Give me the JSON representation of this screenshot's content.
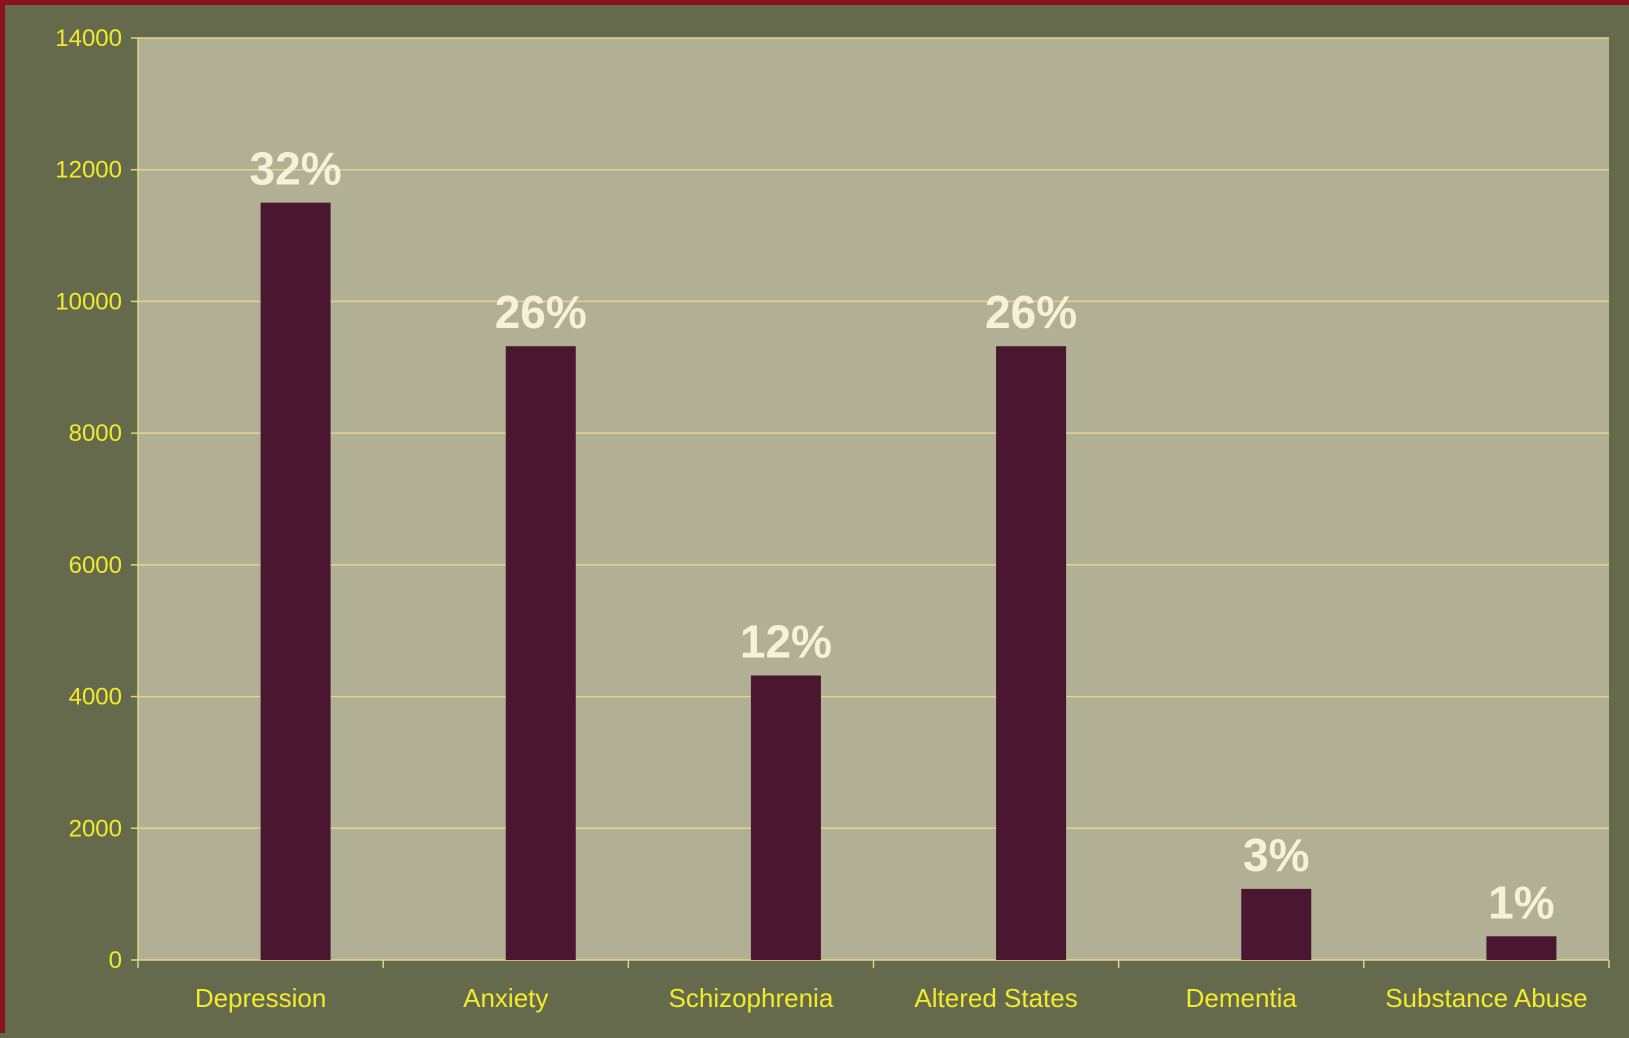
{
  "chart_data": {
    "type": "bar",
    "categories": [
      "Depression",
      "Anxiety",
      "Schizophrenia",
      "Altered States",
      "Dementia",
      "Substance Abuse"
    ],
    "values": [
      11500,
      9320,
      4320,
      9320,
      1080,
      360
    ],
    "data_labels": [
      "32%",
      "26%",
      "12%",
      "26%",
      "3%",
      "1%"
    ],
    "ylim": [
      0,
      14000
    ],
    "yticks": [
      0,
      2000,
      4000,
      6000,
      8000,
      10000,
      12000,
      14000
    ],
    "ytick_labels": [
      "0",
      "2000",
      "4000",
      "6000",
      "8000",
      "10000",
      "12000",
      "14000"
    ],
    "grid": true,
    "legend": "none",
    "colors": {
      "bar": "#4b1630",
      "plot_background": "#b1b094",
      "outer_background": "#656a4c",
      "border": "#8b1020",
      "gridline": "#e2d58a",
      "axis_text": "#f2ea2c",
      "data_label_text": "#f6f1d8"
    }
  }
}
